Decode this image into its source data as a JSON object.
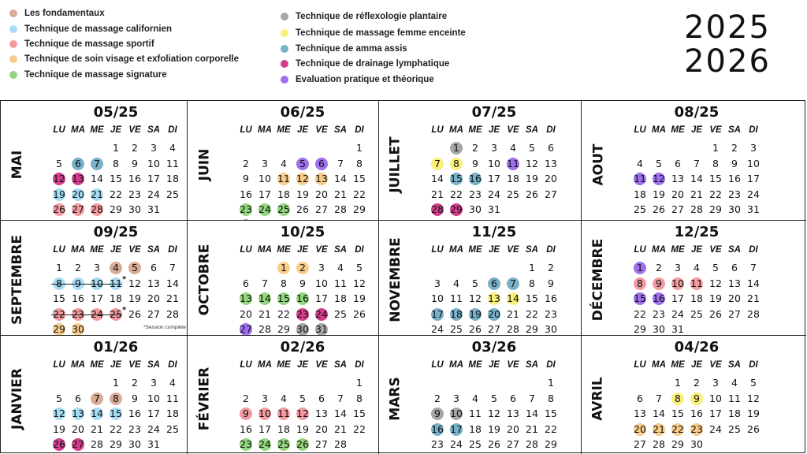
{
  "years": [
    "2025",
    "2026"
  ],
  "legend": [
    {
      "key": "fond",
      "label": "Les fondamentaux",
      "color": "#d9ab98"
    },
    {
      "key": "cal",
      "label": "Technique de massage californien",
      "color": "#a7dcf5"
    },
    {
      "key": "spo",
      "label": "Technique de massage sportif",
      "color": "#f49ba1"
    },
    {
      "key": "vis",
      "label": "Technique de soin visage et exfoliation corporelle",
      "color": "#f8cc8a"
    },
    {
      "key": "sig",
      "label": "Technique de massage signature",
      "color": "#93d67d"
    },
    {
      "key": "ref",
      "label": "Technique de  réflexologie plantaire",
      "color": "#a6a6a6"
    },
    {
      "key": "fem",
      "label": "Technique de massage femme enceinte",
      "color": "#f8f07a"
    },
    {
      "key": "amm",
      "label": "Technique de amma assis",
      "color": "#78b1c8"
    },
    {
      "key": "dra",
      "label": "Technique de drainage lymphatique",
      "color": "#d33e8c"
    },
    {
      "key": "eva",
      "label": "Evaluation pratique et théorique",
      "color": "#9e70ee"
    }
  ],
  "weekdays": [
    "LU",
    "MA",
    "ME",
    "JE",
    "VE",
    "SA",
    "DI"
  ],
  "session_note": "*Session complète",
  "months": [
    {
      "name": "MAI",
      "title": "05/25",
      "offset": 3,
      "days": 31,
      "highlights": {
        "6": "amm",
        "7": "amm",
        "12": "dra",
        "13": "dra",
        "19": "cal",
        "20": "cal",
        "21": "cal",
        "26": "spo",
        "27": "spo",
        "28": "spo"
      }
    },
    {
      "name": "JUIN",
      "title": "06/25",
      "offset": 6,
      "days": 30,
      "highlights": {
        "5": "eva",
        "6": "eva",
        "11": "vis",
        "12": "vis",
        "13": "vis",
        "23": "sig",
        "24": "sig",
        "25": "sig",
        "30": "ref"
      }
    },
    {
      "name": "JUILLET",
      "title": "07/25",
      "offset": 1,
      "days": 31,
      "highlights": {
        "1": "ref",
        "7": "fem",
        "8": "fem",
        "11": "eva",
        "15": "amm",
        "16": "amm",
        "28": "dra",
        "29": "dra"
      }
    },
    {
      "name": "AOUT",
      "title": "08/25",
      "offset": 4,
      "days": 31,
      "highlights": {
        "11": "eva",
        "12": "eva"
      }
    },
    {
      "name": "SEPTEMBRE",
      "title": "09/25",
      "offset": 0,
      "days": 30,
      "highlights": {
        "4": "fond",
        "5": "fond",
        "8": "cal",
        "9": "cal",
        "10": "cal",
        "11": "cal",
        "22": "spo",
        "23": "spo",
        "24": "spo",
        "25": "spo",
        "29": "vis",
        "30": "vis"
      },
      "strike_rows": [
        1,
        3
      ]
    },
    {
      "name": "OCTOBRE",
      "title": "10/25",
      "offset": 2,
      "days": 31,
      "highlights": {
        "1": "vis",
        "2": "vis",
        "13": "sig",
        "14": "sig",
        "15": "sig",
        "16": "sig",
        "23": "dra",
        "24": "dra",
        "27": "eva",
        "30": "ref",
        "31": "ref"
      }
    },
    {
      "name": "NOVEMBRE",
      "title": "11/25",
      "offset": 5,
      "days": 30,
      "highlights": {
        "6": "amm",
        "7": "amm",
        "13": "fem",
        "14": "fem",
        "17": "amm",
        "18": "amm",
        "19": "amm",
        "20": "amm"
      }
    },
    {
      "name": "DÉCEMBRE",
      "title": "12/25",
      "offset": 0,
      "days": 31,
      "highlights": {
        "1": "eva",
        "8": "spo",
        "9": "spo",
        "10": "spo",
        "11": "spo",
        "15": "eva",
        "16": "eva"
      }
    },
    {
      "name": "JANVIER",
      "title": "01/26",
      "offset": 3,
      "days": 31,
      "highlights": {
        "7": "fond",
        "8": "fond",
        "12": "cal",
        "13": "cal",
        "14": "cal",
        "15": "cal",
        "26": "dra",
        "27": "dra"
      }
    },
    {
      "name": "FÉVRIER",
      "title": "02/26",
      "offset": 6,
      "days": 28,
      "highlights": {
        "9": "spo",
        "10": "spo",
        "11": "spo",
        "12": "spo",
        "23": "sig",
        "24": "sig",
        "25": "sig",
        "26": "sig"
      }
    },
    {
      "name": "MARS",
      "title": "03/26",
      "offset": 6,
      "days": 31,
      "highlights": {
        "9": "ref",
        "10": "ref",
        "16": "amm",
        "17": "amm"
      }
    },
    {
      "name": "AVRIL",
      "title": "04/26",
      "offset": 2,
      "days": 30,
      "highlights": {
        "8": "fem",
        "9": "fem",
        "20": "vis",
        "21": "vis",
        "22": "vis",
        "23": "vis"
      }
    }
  ]
}
